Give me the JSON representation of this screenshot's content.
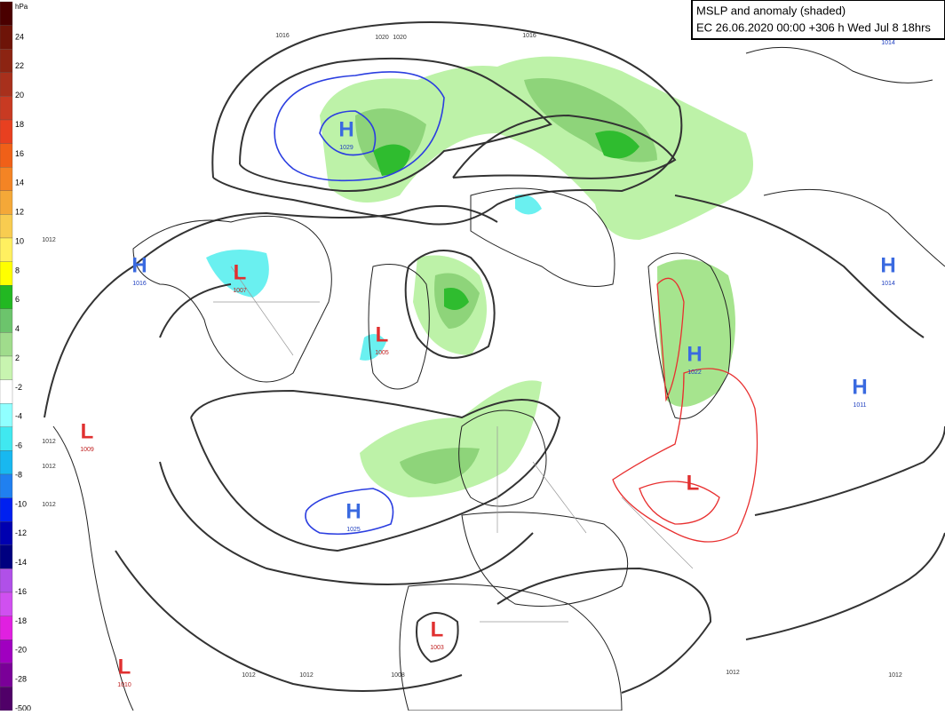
{
  "header": {
    "title": "MSLP and anomaly (shaded)",
    "subtitle": "EC 26.06.2020 00:00 +306 h Wed Jul 8 18hrs"
  },
  "colorbar": {
    "unit": "hPa",
    "labels": [
      24,
      22,
      20,
      18,
      16,
      14,
      12,
      10,
      8,
      6,
      4,
      2,
      -2,
      -4,
      -6,
      -8,
      -10,
      -12,
      -14,
      -16,
      -18,
      -20,
      -28,
      -500
    ],
    "colors": [
      "#4a0000",
      "#6e1408",
      "#8c2412",
      "#a8301c",
      "#c83a22",
      "#e84020",
      "#f06018",
      "#f48424",
      "#f4a838",
      "#f8cc50",
      "#fff060",
      "#ffff00",
      "#22b822",
      "#6cc46c",
      "#a0dc8c",
      "#c8f4b0",
      "#ffffff",
      "#90ffff",
      "#40e8f0",
      "#18b8f0",
      "#2080f0",
      "#0020f0",
      "#0000b0",
      "#000080",
      "#b050e8",
      "#d050f0",
      "#e020e0",
      "#a000c0",
      "#7a0098",
      "#500068"
    ]
  },
  "centers": [
    {
      "kind": "H",
      "pressure": "1029"
    },
    {
      "kind": "L",
      "pressure": "1007"
    },
    {
      "kind": "H",
      "pressure": "1016"
    },
    {
      "kind": "L",
      "pressure": "1005"
    },
    {
      "kind": "H",
      "pressure": "1025"
    },
    {
      "kind": "L",
      "pressure": "1009"
    },
    {
      "kind": "L",
      "pressure": "1003"
    },
    {
      "kind": "L",
      "pressure": "1010"
    },
    {
      "kind": "H",
      "pressure": "1022"
    },
    {
      "kind": "H",
      "pressure": "1014"
    },
    {
      "kind": "H",
      "pressure": "1011"
    },
    {
      "kind": "L",
      "pressure": ""
    }
  ],
  "isobar_labels": [
    "1016",
    "1020",
    "1020",
    "1016",
    "1014",
    "1012",
    "1012",
    "1012",
    "1012",
    "1012",
    "1008",
    "1012",
    "1012",
    "1012"
  ]
}
